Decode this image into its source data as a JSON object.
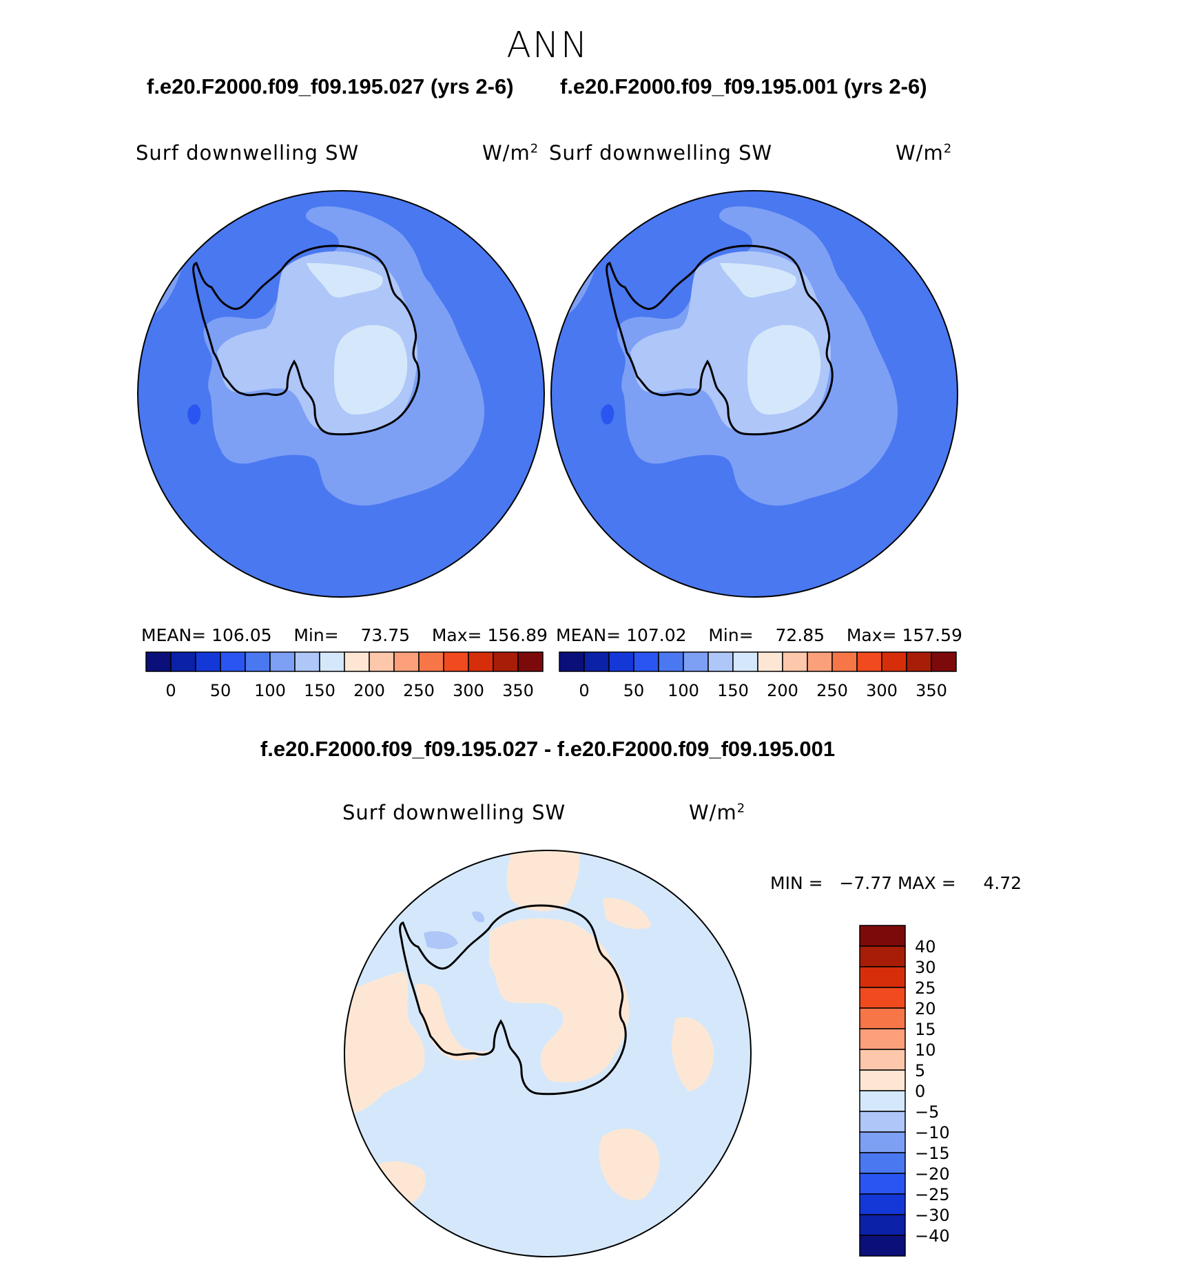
{
  "title": "ANN",
  "panels": [
    {
      "case_title": "f.e20.F2000.f09_f09.195.027 (yrs 2-6)",
      "variable": "Surf downwelling SW",
      "units_base": "W/m",
      "units_exp": "2",
      "stats": {
        "mean_label": "MEAN=",
        "mean": "106.05",
        "min_label": "Min=",
        "min": "73.75",
        "max_label": "Max=",
        "max": "156.89"
      }
    },
    {
      "case_title": "f.e20.F2000.f09_f09.195.001 (yrs 2-6)",
      "variable": "Surf downwelling SW",
      "units_base": "W/m",
      "units_exp": "2",
      "stats": {
        "mean_label": "MEAN=",
        "mean": "107.02",
        "min_label": "Min=",
        "min": "72.85",
        "max_label": "Max=",
        "max": "157.59"
      }
    }
  ],
  "diff": {
    "case_title": "f.e20.F2000.f09_f09.195.027 - f.e20.F2000.f09_f09.195.001",
    "variable": "Surf downwelling SW",
    "units_base": "W/m",
    "units_exp": "2",
    "stats": {
      "min_label": "MIN =",
      "min": "−7.77",
      "max_label": "MAX =",
      "max": "4.72"
    }
  },
  "colorbar_main": {
    "colors": [
      "#0a0f7a",
      "#0a21a8",
      "#1438d8",
      "#2a55f0",
      "#4a78f0",
      "#7da0f5",
      "#aec6f8",
      "#d5e8fb",
      "#fde7d4",
      "#fcc7aa",
      "#fba07b",
      "#f77648",
      "#f04a1e",
      "#d62e0a",
      "#a81d08",
      "#7d0a0a"
    ],
    "labels": [
      "0",
      "50",
      "100",
      "150",
      "200",
      "250",
      "300",
      "350"
    ]
  },
  "colorbar_diff": {
    "colors": [
      "#7d0a0a",
      "#a81d08",
      "#d62e0a",
      "#f04a1e",
      "#f77648",
      "#fba07b",
      "#fcc7aa",
      "#fde7d4",
      "#d5e8fb",
      "#aec6f8",
      "#7da0f5",
      "#4a78f0",
      "#2a55f0",
      "#1438d8",
      "#0a21a8",
      "#0a0f7a"
    ],
    "labels": [
      "40",
      "30",
      "25",
      "20",
      "15",
      "10",
      "5",
      "0",
      "−5",
      "−10",
      "−15",
      "−20",
      "−25",
      "−30",
      "−40"
    ]
  },
  "field_colors": {
    "ocean": "#4a78f0",
    "coastal": "#7da0f5",
    "land": "#aec6f8",
    "plateau": "#d5e8fb",
    "min_patch": "#2a55f0",
    "diff_neg": "#d5e8fb",
    "diff_pos": "#fde7d4",
    "diff_neg2": "#aec6f8"
  }
}
